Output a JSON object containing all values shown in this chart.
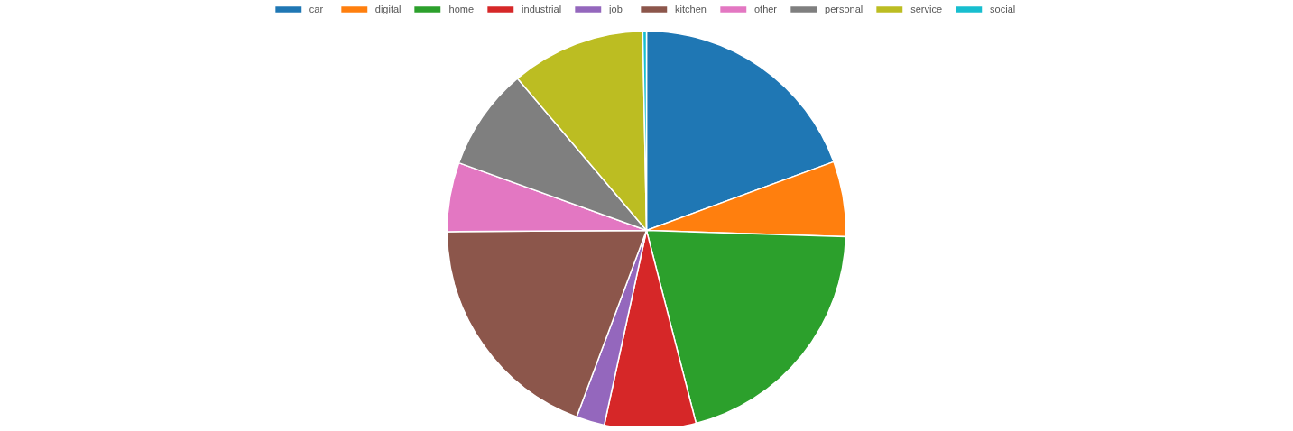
{
  "chart_data": {
    "type": "pie",
    "categories": [
      "car",
      "digital",
      "home",
      "industrial",
      "job",
      "kitchen",
      "other",
      "personal",
      "service",
      "social"
    ],
    "values": [
      19.4,
      6.1,
      20.5,
      7.4,
      2.3,
      19.2,
      5.6,
      8.3,
      10.9,
      0.3
    ],
    "colors": [
      "#1f77b4",
      "#ff7f0e",
      "#2ca02c",
      "#d62728",
      "#9467bd",
      "#8c564b",
      "#e377c2",
      "#7f7f7f",
      "#bcbd22",
      "#17becf"
    ],
    "legend": "top"
  }
}
